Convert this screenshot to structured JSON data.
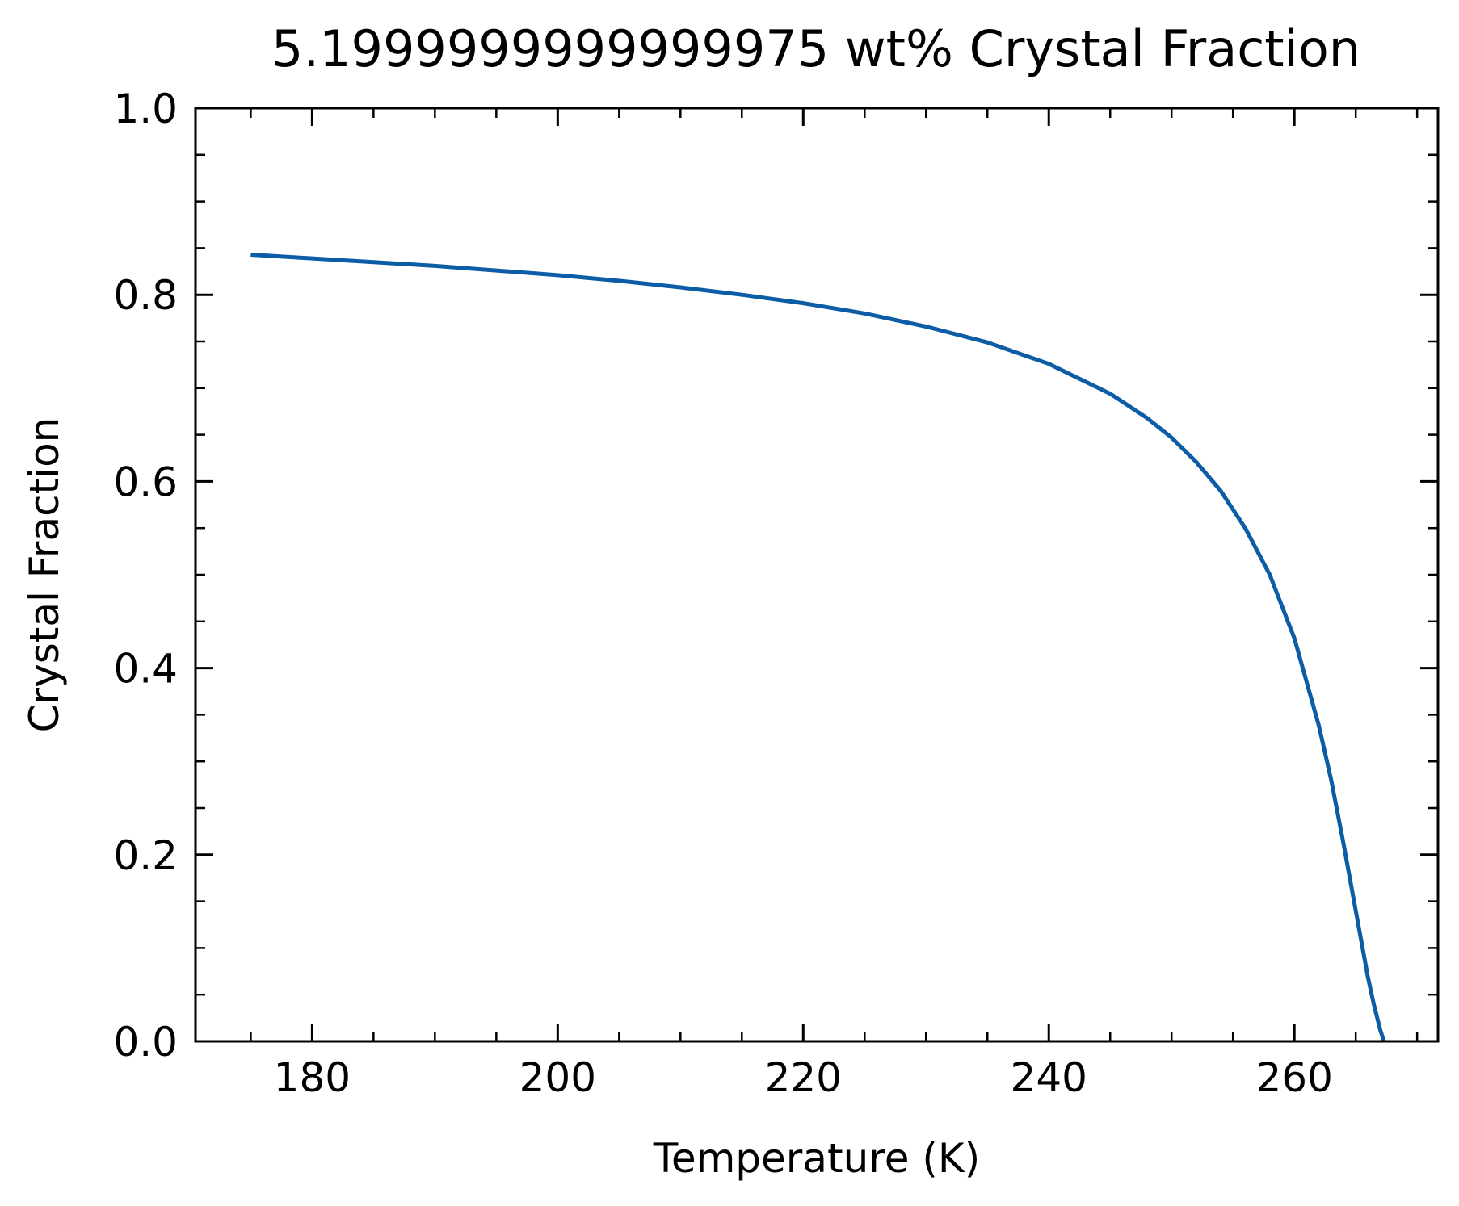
{
  "chart_data": {
    "type": "line",
    "title": "5.1999999999999975 wt% Crystal Fraction",
    "xlabel": "Temperature (K)",
    "ylabel": "Crystal Fraction",
    "xlim": [
      170.5,
      271.7
    ],
    "ylim": [
      0.0,
      1.0
    ],
    "x_ticks": [
      180,
      200,
      220,
      240,
      260
    ],
    "x_tick_labels": [
      "180",
      "200",
      "220",
      "240",
      "260"
    ],
    "y_ticks": [
      0.0,
      0.2,
      0.4,
      0.6,
      0.8,
      1.0
    ],
    "y_tick_labels": [
      "0.0",
      "0.2",
      "0.4",
      "0.6",
      "0.8",
      "1.0"
    ],
    "grid": false,
    "series": [
      {
        "color": "#0c5da5",
        "x": [
          175,
          180,
          185,
          190,
          195,
          200,
          205,
          210,
          215,
          220,
          225,
          230,
          235,
          240,
          245,
          248,
          250,
          252,
          254,
          256,
          258,
          260,
          262,
          263,
          264,
          265,
          266,
          266.5,
          267,
          267.3
        ],
        "y": [
          0.843,
          0.839,
          0.835,
          0.831,
          0.826,
          0.821,
          0.815,
          0.808,
          0.8,
          0.791,
          0.78,
          0.766,
          0.749,
          0.726,
          0.694,
          0.668,
          0.647,
          0.621,
          0.59,
          0.55,
          0.5,
          0.432,
          0.338,
          0.28,
          0.212,
          0.14,
          0.068,
          0.038,
          0.012,
          0.0
        ]
      }
    ]
  }
}
